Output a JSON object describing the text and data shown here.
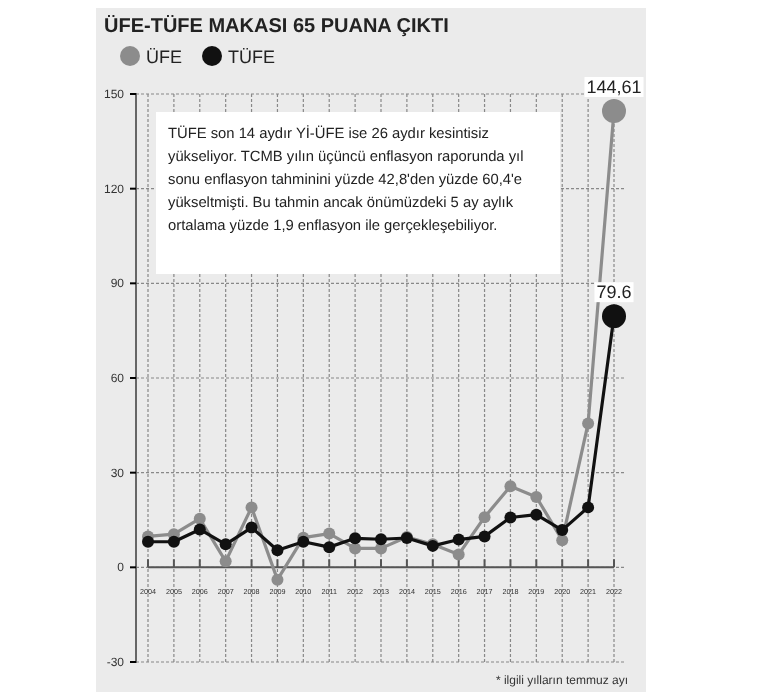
{
  "chart_data": {
    "type": "line",
    "title": "ÜFE-TÜFE MAKASI 65 PUANA ÇIKTI",
    "categories": [
      "2004",
      "2005",
      "2006",
      "2007",
      "2008",
      "2009",
      "2010",
      "2011",
      "2012",
      "2013",
      "2014",
      "2015",
      "2016",
      "2017",
      "2018",
      "2019",
      "2020",
      "2021",
      "2022"
    ],
    "series": [
      {
        "name": "ÜFE",
        "color": "#8c8c8c",
        "values": [
          9.8,
          10.5,
          15.4,
          1.9,
          19,
          -3.9,
          9.4,
          10.7,
          6,
          6,
          9.6,
          7.3,
          4.1,
          15.9,
          25.7,
          22.3,
          8.6,
          45.6,
          144.61
        ],
        "value_labels": [
          null,
          null,
          null,
          null,
          null,
          null,
          null,
          null,
          null,
          null,
          null,
          null,
          null,
          null,
          null,
          null,
          null,
          null,
          "144,61"
        ]
      },
      {
        "name": "TÜFE",
        "color": "#111111",
        "values": [
          8.1,
          8.1,
          12,
          7.3,
          12.6,
          5.4,
          8.1,
          6.4,
          9.2,
          8.9,
          9.3,
          6.8,
          8.8,
          9.8,
          15.8,
          16.7,
          11.8,
          19,
          79.6
        ],
        "value_labels": [
          null,
          null,
          null,
          null,
          null,
          null,
          null,
          null,
          null,
          null,
          null,
          null,
          null,
          null,
          null,
          null,
          null,
          null,
          "79.6"
        ]
      }
    ],
    "ylim": [
      -30,
      150
    ],
    "yticks": [
      -30,
      0,
      30,
      60,
      90,
      120,
      150
    ],
    "grid": true,
    "legend": "top left",
    "marker": "circle",
    "annotations": [
      "TÜFE son 14 aydır Yİ-ÜFE ise 26 aydır kesintisiz yükseliyor. TCMB yılın üçüncü enflasyon raporunda yıl sonu enflasyon tahminini yüzde 42,8'den yüzde 60,4'e yükseltmişti. Bu tahmin ancak önümüzdeki 5 ay aylık ortalama yüzde 1,9 enflasyon ile gerçekleşebiliyor.",
      "* ilgili yılların temmuz ayı"
    ]
  }
}
